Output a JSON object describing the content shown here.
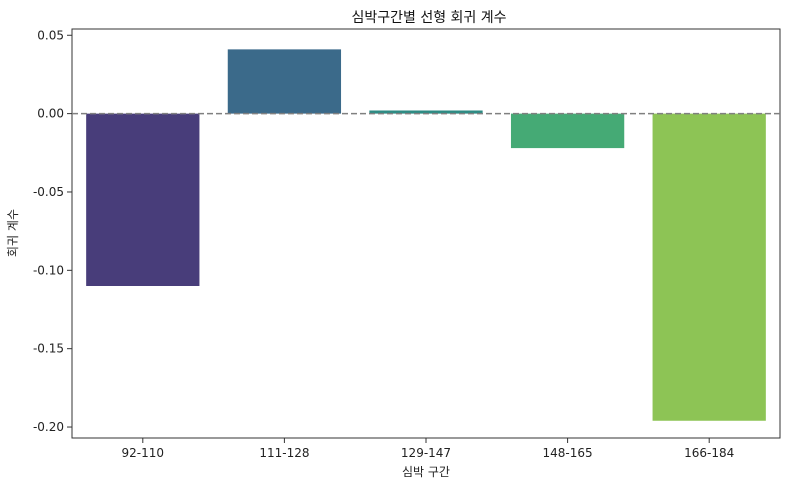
{
  "chart_data": {
    "type": "bar",
    "title": "심박구간별 선형 회귀 계수",
    "xlabel": "심박 구간",
    "ylabel": "회귀 계수",
    "categories": [
      "92-110",
      "111-128",
      "129-147",
      "148-165",
      "166-184"
    ],
    "values": [
      -0.11,
      0.041,
      0.002,
      -0.022,
      -0.196
    ],
    "colors": [
      "#483D7A",
      "#3B6A8A",
      "#2E8C84",
      "#45AA75",
      "#8DC455"
    ],
    "ylim": [
      -0.207,
      0.054
    ],
    "yticks": [
      0.05,
      0.0,
      -0.05,
      -0.1,
      -0.15,
      -0.2
    ],
    "ytick_labels": [
      "0.05",
      "0.00",
      "-0.05",
      "-0.10",
      "-0.15",
      "-0.20"
    ],
    "reference_line": {
      "y": 0,
      "style": "dashed",
      "color": "#808080"
    },
    "grid": false,
    "legend": "none"
  }
}
